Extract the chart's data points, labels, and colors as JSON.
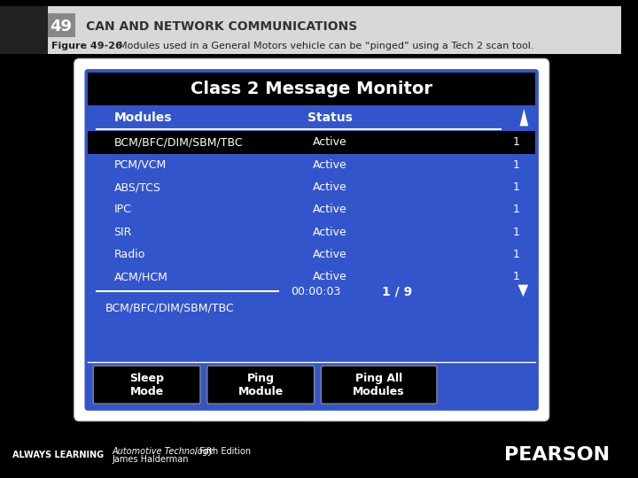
{
  "title_bar_text": "CAN AND NETWORK COMMUNICATIONS",
  "chapter_num": "49",
  "figure_label": "Figure 49-26",
  "figure_caption": "Modules used in a General Motors vehicle can be “pinged” using a Tech 2 scan tool.",
  "footer_left": "ALWAYS LEARNING",
  "footer_book": "Automotive Technology",
  "footer_edition": ", Fifth Edition",
  "footer_author": "James Halderman",
  "footer_right": "PEARSON",
  "screen_title": "Class 2 Message Monitor",
  "col1_header": "Modules",
  "col2_header": "Status",
  "modules": [
    "BCM/BFC/DIM/SBM/TBC",
    "PCM/VCM",
    "ABS/TCS",
    "IPC",
    "SIR",
    "Radio",
    "ACM/HCM"
  ],
  "statuses": [
    "Active",
    "Active",
    "Active",
    "Active",
    "Active",
    "Active",
    "Active"
  ],
  "counts": [
    "1",
    "1",
    "1",
    "1",
    "1",
    "1",
    "1"
  ],
  "timer": "00:00:03",
  "page_info": "1 / 9",
  "selected_module": "BCM/BFC/DIM/SBM/TBC",
  "btn1": "Sleep\nMode",
  "btn2": "Ping\nModule",
  "btn3": "Ping All\nModules",
  "bg_color": "#000000",
  "screen_outer_bg": "#f0f0f0",
  "screen_blue": "#3355cc",
  "screen_dark_blue": "#2244aa",
  "screen_black": "#000000",
  "screen_white": "#ffffff",
  "header_bg": "#000000",
  "header_text": "#ffffff",
  "row_odd_bg": "#3355cc",
  "row_highlight_bg": "#000000",
  "footer_bg": "#000000",
  "top_bar_bg": "#cccccc",
  "title_color": "#333333"
}
